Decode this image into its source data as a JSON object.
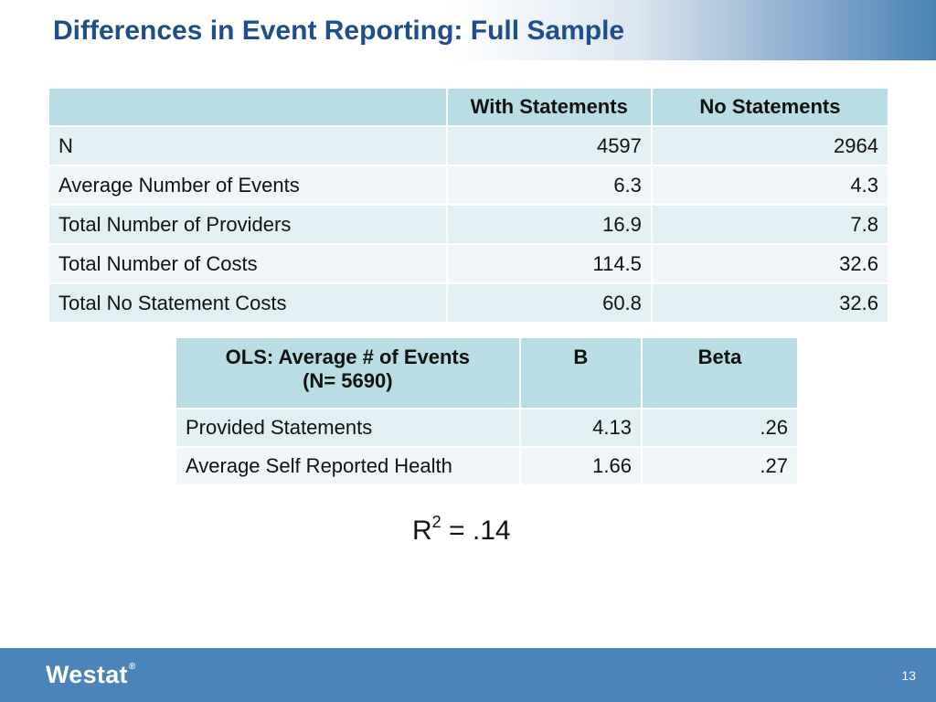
{
  "title": "Differences in Event Reporting: Full Sample",
  "table1": {
    "headers": [
      "",
      "With Statements",
      "No Statements"
    ],
    "rows": [
      {
        "label": "N",
        "with": "4597",
        "without": "2964"
      },
      {
        "label": "Average Number of Events",
        "with": "6.3",
        "without": "4.3"
      },
      {
        "label": "Total Number of Providers",
        "with": "16.9",
        "without": "7.8"
      },
      {
        "label": "Total Number of Costs",
        "with": "114.5",
        "without": "32.6"
      },
      {
        "label": "Total No Statement Costs",
        "with": "60.8",
        "without": "32.6"
      }
    ]
  },
  "table2": {
    "header_line1": "OLS: Average # of Events",
    "header_line2": "(N= 5690)",
    "col_b": "B",
    "col_beta": "Beta",
    "rows": [
      {
        "label": "Provided Statements",
        "b": "4.13",
        "beta": ".26"
      },
      {
        "label": "Average Self Reported Health",
        "b": "1.66",
        "beta": ".27"
      }
    ]
  },
  "r_squared": {
    "base": "R",
    "exponent": "2",
    "rest": " = .14"
  },
  "footer": {
    "logo": "Westat",
    "logo_mark": "®",
    "page_number": "13"
  },
  "colors": {
    "title": "#1f4e8c",
    "header_fill": "#b9dde4",
    "row_odd": "#e3f0f3",
    "row_even": "#f1f7f9",
    "footer": "#4a84b8"
  }
}
